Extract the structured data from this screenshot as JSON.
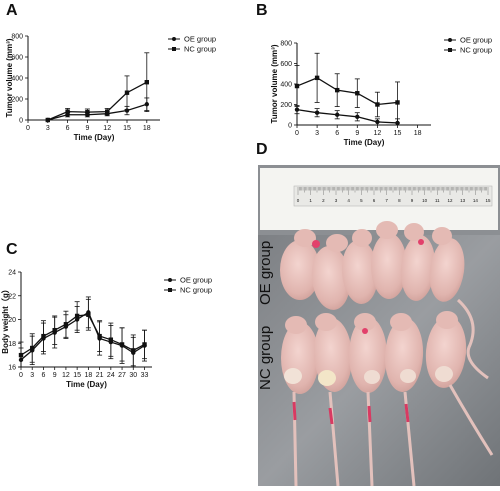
{
  "panels": {
    "a": "A",
    "b": "B",
    "c": "C",
    "d": "D"
  },
  "photo": {
    "label_oe": "OE group",
    "label_nc": "NC group",
    "ruler_numbers": [
      "0",
      "1",
      "2",
      "3",
      "4",
      "5",
      "6",
      "7",
      "8",
      "9",
      "10",
      "11",
      "12",
      "13",
      "14",
      "15"
    ]
  },
  "chart_data": [
    {
      "type": "line",
      "panel": "A",
      "xlabel": "Time (Day)",
      "ylabel": "Tumor volume (mm³)",
      "x_ticks": [
        0,
        3,
        6,
        9,
        12,
        15,
        18
      ],
      "y_ticks": [
        0,
        200,
        400,
        600,
        800
      ],
      "xlim": [
        0,
        20
      ],
      "ylim": [
        0,
        800
      ],
      "legend_position": "top-right",
      "series": [
        {
          "name": "OE group",
          "marker": "circle",
          "x": [
            3,
            6,
            9,
            12,
            15,
            18
          ],
          "y": [
            0,
            50,
            50,
            60,
            90,
            150
          ],
          "err": [
            0,
            20,
            20,
            20,
            40,
            60
          ]
        },
        {
          "name": "NC group",
          "marker": "square",
          "x": [
            3,
            6,
            9,
            12,
            15,
            18
          ],
          "y": [
            0,
            80,
            75,
            80,
            260,
            360
          ],
          "err": [
            0,
            30,
            30,
            30,
            160,
            280
          ]
        }
      ]
    },
    {
      "type": "line",
      "panel": "B",
      "xlabel": "Time (Day)",
      "ylabel": "Tumor volume (mm³)",
      "x_ticks": [
        0,
        3,
        6,
        9,
        12,
        15,
        18
      ],
      "y_ticks": [
        0,
        200,
        400,
        600,
        800
      ],
      "xlim": [
        0,
        20
      ],
      "ylim": [
        0,
        800
      ],
      "legend_position": "top-right",
      "series": [
        {
          "name": "OE group",
          "marker": "circle",
          "x": [
            0,
            3,
            6,
            9,
            12,
            15
          ],
          "y": [
            150,
            120,
            100,
            80,
            30,
            20
          ],
          "err": [
            40,
            40,
            40,
            40,
            30,
            40
          ]
        },
        {
          "name": "NC group",
          "marker": "square",
          "x": [
            0,
            3,
            6,
            9,
            12,
            15
          ],
          "y": [
            380,
            460,
            340,
            310,
            200,
            220
          ],
          "err": [
            200,
            240,
            160,
            140,
            120,
            200
          ]
        }
      ]
    },
    {
      "type": "line",
      "panel": "C",
      "xlabel": "Time (Day)",
      "ylabel": "Body weight（g）",
      "x_ticks": [
        0,
        3,
        6,
        9,
        12,
        15,
        18,
        21,
        24,
        27,
        30,
        33
      ],
      "y_ticks": [
        16,
        18,
        20,
        22,
        24
      ],
      "xlim": [
        0,
        35
      ],
      "ylim": [
        16,
        24
      ],
      "legend_position": "top-right",
      "series": [
        {
          "name": "OE group",
          "marker": "circle",
          "x": [
            0,
            3,
            6,
            9,
            12,
            15,
            18,
            21,
            24,
            27,
            30,
            33
          ],
          "y": [
            16.6,
            17.4,
            18.4,
            18.9,
            19.4,
            20.0,
            20.6,
            18.4,
            18.1,
            17.8,
            17.2,
            17.8
          ],
          "err": [
            1.0,
            1.2,
            1.3,
            1.3,
            1.0,
            1.1,
            1.3,
            1.4,
            1.4,
            1.5,
            1.3,
            1.3
          ]
        },
        {
          "name": "NC group",
          "marker": "square",
          "x": [
            0,
            3,
            6,
            9,
            12,
            15,
            18,
            21,
            24,
            27,
            30,
            33
          ],
          "y": [
            17.0,
            17.6,
            18.6,
            19.1,
            19.6,
            20.3,
            20.4,
            18.6,
            18.3,
            17.9,
            17.4,
            17.9
          ],
          "err": [
            1.1,
            1.2,
            1.3,
            1.2,
            1.1,
            1.2,
            1.3,
            1.3,
            1.4,
            1.4,
            1.3,
            1.2
          ]
        }
      ]
    }
  ]
}
